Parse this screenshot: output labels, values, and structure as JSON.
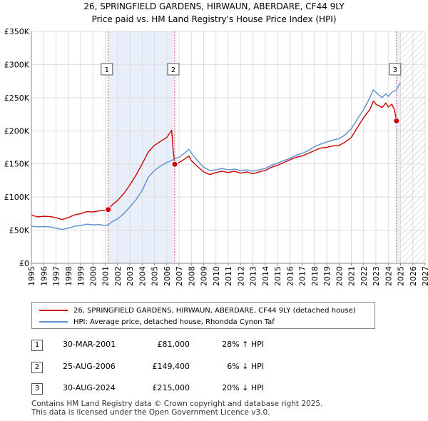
{
  "chart_data": {
    "type": "line",
    "title": "26, SPRINGFIELD GARDENS, HIRWAUN, ABERDARE, CF44 9LY",
    "subtitle": "Price paid vs. HM Land Registry's House Price Index (HPI)",
    "xlim": [
      1995,
      2027
    ],
    "ylim": [
      0,
      350000
    ],
    "x_ticks": [
      "1995",
      "1996",
      "1997",
      "1998",
      "1999",
      "2000",
      "2001",
      "2002",
      "2003",
      "2004",
      "2005",
      "2006",
      "2007",
      "2008",
      "2009",
      "2010",
      "2011",
      "2012",
      "2013",
      "2014",
      "2015",
      "2016",
      "2017",
      "2018",
      "2019",
      "2020",
      "2021",
      "2022",
      "2023",
      "2024",
      "2025",
      "2026",
      "2027"
    ],
    "y_ticks": [
      {
        "value": 0,
        "label": "£0"
      },
      {
        "value": 50000,
        "label": "£50K"
      },
      {
        "value": 100000,
        "label": "£100K"
      },
      {
        "value": 150000,
        "label": "£150K"
      },
      {
        "value": 200000,
        "label": "£200K"
      },
      {
        "value": 250000,
        "label": "£250K"
      },
      {
        "value": 300000,
        "label": "£300K"
      },
      {
        "value": 350000,
        "label": "£350K"
      }
    ],
    "grid": true,
    "shaded_periods": [
      {
        "from": 2001.25,
        "to": 2006.65
      },
      {
        "from": 2024.67,
        "to": 2025.0
      }
    ],
    "forecast_hatch_from": 2025.0,
    "sale_markers": [
      {
        "id": "1",
        "x": 2001.25,
        "y": 81000
      },
      {
        "id": "2",
        "x": 2006.65,
        "y": 149400
      },
      {
        "id": "3",
        "x": 2024.67,
        "y": 215000
      }
    ],
    "series": [
      {
        "name": "26, SPRINGFIELD GARDENS, HIRWAUN, ABERDARE, CF44 9LY (detached house)",
        "color": "#cc0000",
        "points": [
          [
            1995.0,
            73000
          ],
          [
            1995.5,
            70000
          ],
          [
            1996.0,
            71000
          ],
          [
            1996.5,
            70500
          ],
          [
            1997.0,
            69000
          ],
          [
            1997.5,
            66000
          ],
          [
            1998.0,
            69000
          ],
          [
            1998.5,
            73000
          ],
          [
            1999.0,
            75000
          ],
          [
            1999.5,
            78000
          ],
          [
            2000.0,
            77500
          ],
          [
            2000.5,
            79000
          ],
          [
            2001.0,
            80000
          ],
          [
            2001.25,
            81000
          ],
          [
            2001.5,
            87000
          ],
          [
            2002.0,
            95000
          ],
          [
            2002.5,
            105000
          ],
          [
            2003.0,
            118000
          ],
          [
            2003.5,
            133000
          ],
          [
            2004.0,
            150000
          ],
          [
            2004.5,
            168000
          ],
          [
            2005.0,
            178000
          ],
          [
            2005.5,
            184000
          ],
          [
            2006.0,
            190000
          ],
          [
            2006.4,
            201000
          ],
          [
            2006.5,
            175000
          ],
          [
            2006.65,
            149400
          ],
          [
            2007.0,
            152000
          ],
          [
            2007.5,
            158000
          ],
          [
            2007.8,
            162000
          ],
          [
            2008.0,
            155000
          ],
          [
            2008.5,
            146000
          ],
          [
            2009.0,
            138000
          ],
          [
            2009.5,
            134000
          ],
          [
            2010.0,
            137000
          ],
          [
            2010.5,
            139000
          ],
          [
            2011.0,
            137000
          ],
          [
            2011.5,
            139000
          ],
          [
            2012.0,
            136000
          ],
          [
            2012.5,
            138000
          ],
          [
            2013.0,
            135000
          ],
          [
            2013.5,
            138000
          ],
          [
            2014.0,
            140000
          ],
          [
            2014.5,
            145000
          ],
          [
            2015.0,
            148000
          ],
          [
            2015.5,
            152000
          ],
          [
            2016.0,
            156000
          ],
          [
            2016.5,
            160000
          ],
          [
            2017.0,
            162000
          ],
          [
            2017.5,
            166000
          ],
          [
            2018.0,
            170000
          ],
          [
            2018.5,
            174000
          ],
          [
            2019.0,
            175000
          ],
          [
            2019.5,
            177000
          ],
          [
            2020.0,
            178000
          ],
          [
            2020.5,
            183000
          ],
          [
            2021.0,
            190000
          ],
          [
            2021.5,
            205000
          ],
          [
            2022.0,
            220000
          ],
          [
            2022.5,
            232000
          ],
          [
            2022.8,
            245000
          ],
          [
            2023.0,
            240000
          ],
          [
            2023.5,
            235000
          ],
          [
            2023.8,
            242000
          ],
          [
            2024.0,
            236000
          ],
          [
            2024.3,
            240000
          ],
          [
            2024.5,
            232000
          ],
          [
            2024.67,
            215000
          ]
        ]
      },
      {
        "name": "HPI: Average price, detached house, Rhondda Cynon Taf",
        "color": "#5b8fcf",
        "points": [
          [
            1995.0,
            56000
          ],
          [
            1995.5,
            55000
          ],
          [
            1996.0,
            55500
          ],
          [
            1996.5,
            55000
          ],
          [
            1997.0,
            53000
          ],
          [
            1997.5,
            51000
          ],
          [
            1998.0,
            53000
          ],
          [
            1998.5,
            56000
          ],
          [
            1999.0,
            57000
          ],
          [
            1999.5,
            59000
          ],
          [
            2000.0,
            58000
          ],
          [
            2000.5,
            58500
          ],
          [
            2001.0,
            57000
          ],
          [
            2001.25,
            58000
          ],
          [
            2001.5,
            62000
          ],
          [
            2002.0,
            67000
          ],
          [
            2002.5,
            75000
          ],
          [
            2003.0,
            85000
          ],
          [
            2003.5,
            96000
          ],
          [
            2004.0,
            110000
          ],
          [
            2004.5,
            130000
          ],
          [
            2005.0,
            140000
          ],
          [
            2005.5,
            147000
          ],
          [
            2006.0,
            152000
          ],
          [
            2006.5,
            156000
          ],
          [
            2006.65,
            158000
          ],
          [
            2007.0,
            160000
          ],
          [
            2007.5,
            167000
          ],
          [
            2007.8,
            172000
          ],
          [
            2008.0,
            166000
          ],
          [
            2008.5,
            155000
          ],
          [
            2009.0,
            145000
          ],
          [
            2009.5,
            140000
          ],
          [
            2010.0,
            141000
          ],
          [
            2010.5,
            143000
          ],
          [
            2011.0,
            141000
          ],
          [
            2011.5,
            142000
          ],
          [
            2012.0,
            140000
          ],
          [
            2012.5,
            141000
          ],
          [
            2013.0,
            139000
          ],
          [
            2013.5,
            141000
          ],
          [
            2014.0,
            143000
          ],
          [
            2014.5,
            148000
          ],
          [
            2015.0,
            151000
          ],
          [
            2015.5,
            155000
          ],
          [
            2016.0,
            158000
          ],
          [
            2016.5,
            163000
          ],
          [
            2017.0,
            166000
          ],
          [
            2017.5,
            170000
          ],
          [
            2018.0,
            176000
          ],
          [
            2018.5,
            180000
          ],
          [
            2019.0,
            183000
          ],
          [
            2019.5,
            186000
          ],
          [
            2020.0,
            188000
          ],
          [
            2020.5,
            194000
          ],
          [
            2021.0,
            203000
          ],
          [
            2021.5,
            218000
          ],
          [
            2022.0,
            232000
          ],
          [
            2022.5,
            250000
          ],
          [
            2022.8,
            262000
          ],
          [
            2023.0,
            258000
          ],
          [
            2023.5,
            250000
          ],
          [
            2023.8,
            256000
          ],
          [
            2024.0,
            252000
          ],
          [
            2024.3,
            258000
          ],
          [
            2024.67,
            262000
          ],
          [
            2024.9,
            270000
          ],
          [
            2025.0,
            272000
          ]
        ]
      }
    ]
  },
  "legend": {
    "items": [
      {
        "label": "26, SPRINGFIELD GARDENS, HIRWAUN, ABERDARE, CF44 9LY (detached house)",
        "color": "#cc0000"
      },
      {
        "label": "HPI: Average price, detached house, Rhondda Cynon Taf",
        "color": "#5b8fcf"
      }
    ]
  },
  "transactions": [
    {
      "id": "1",
      "date": "30-MAR-2001",
      "price": "£81,000",
      "hpi": "28% ↑ HPI"
    },
    {
      "id": "2",
      "date": "25-AUG-2006",
      "price": "£149,400",
      "hpi": "6% ↓ HPI"
    },
    {
      "id": "3",
      "date": "30-AUG-2024",
      "price": "£215,000",
      "hpi": "20% ↓ HPI"
    }
  ],
  "footer": {
    "line1": "Contains HM Land Registry data © Crown copyright and database right 2025.",
    "line2": "This data is licensed under the Open Government Licence v3.0."
  }
}
